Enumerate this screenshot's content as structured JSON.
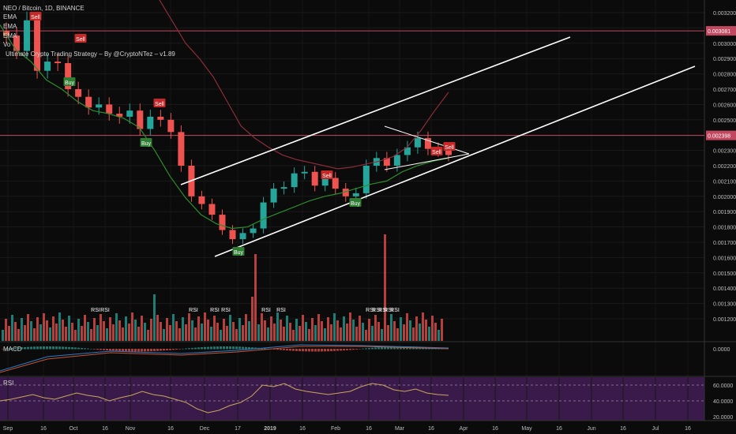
{
  "header": {
    "symbol": "NEO / Bitcoin, 1D, BINANCE",
    "ema_labels": [
      "EMA",
      "EMA",
      "EMA"
    ],
    "vol_label": "Vo",
    "strategy": "Ultimate Crypto Trading Strategy – By @CryptoNTez – v1.89"
  },
  "panes": {
    "macd_label": "MACD",
    "rsi_label": "RSI"
  },
  "colors": {
    "background": "#0b0b0b",
    "candle_up": "#26a69a",
    "candle_down": "#ef5350",
    "ema_green": "#2e8b2e",
    "ema_red": "#8b2d3a",
    "hline": "#c2485f",
    "channel": "#ffffff",
    "rsi_band": "#3a1a4a",
    "rsi_line": "#c9a75a",
    "buy": "#2e7d32",
    "sell": "#c62828"
  },
  "chart_data": {
    "type": "candlestick",
    "title": "NEO / Bitcoin, 1D, BINANCE",
    "x_ticks": [
      "Sep",
      "16",
      "Oct",
      "16",
      "Nov",
      "16",
      "Dec",
      "17",
      "2019",
      "16",
      "Feb",
      "16",
      "Mar",
      "16",
      "Apr",
      "16",
      "May",
      "16",
      "Jun",
      "16",
      "Jul",
      "16"
    ],
    "y_ticks": [
      "0.003200",
      "0.003100",
      "0.003000",
      "0.002900",
      "0.002800",
      "0.002700",
      "0.002600",
      "0.002500",
      "0.002400",
      "0.002300",
      "0.002200",
      "0.002100",
      "0.002000",
      "0.001900",
      "0.001800",
      "0.001700",
      "0.001600",
      "0.001500",
      "0.001400",
      "0.001300",
      "0.001200"
    ],
    "ylim": [
      0.00115,
      0.00325
    ],
    "price_close": [
      0.00305,
      0.00295,
      0.00315,
      0.00282,
      0.00288,
      0.00287,
      0.0027,
      0.00265,
      0.00258,
      0.0026,
      0.00254,
      0.00252,
      0.00256,
      0.00244,
      0.00252,
      0.0025,
      0.00242,
      0.0022,
      0.002,
      0.00195,
      0.00188,
      0.00178,
      0.00172,
      0.00176,
      0.00179,
      0.00196,
      0.00205,
      0.00206,
      0.00215,
      0.00216,
      0.00207,
      0.00212,
      0.00205,
      0.002,
      0.00202,
      0.0022,
      0.00225,
      0.0022,
      0.00227,
      0.00232,
      0.00238,
      0.00231,
      0.0023,
      0.00227
    ],
    "ema_fast": [
      0.00312,
      0.00296,
      0.00288,
      0.00276,
      0.0027,
      0.00262,
      0.00256,
      0.00254,
      0.00251,
      0.00245,
      0.0023,
      0.00213,
      0.00199,
      0.00188,
      0.00182,
      0.00179,
      0.0018,
      0.00185,
      0.00189,
      0.00193,
      0.00197,
      0.002,
      0.00202,
      0.00205,
      0.00208,
      0.0021,
      0.00216,
      0.0022,
      0.00223,
      0.00225
    ],
    "ema_slow": [
      0.0033,
      0.00315,
      0.003,
      0.0029,
      0.00278,
      0.00262,
      0.00246,
      0.00238,
      0.00232,
      0.00227,
      0.00224,
      0.00222,
      0.0022,
      0.00218,
      0.00219,
      0.00221,
      0.00223,
      0.00226,
      0.00232,
      0.00243,
      0.00256,
      0.00268
    ],
    "hlines": [
      {
        "value": 0.003081,
        "label": "0.003081"
      },
      {
        "value": 0.002398,
        "label": "0.002398"
      }
    ],
    "signals": [
      {
        "type": "Sell",
        "price": 0.00304
      },
      {
        "type": "Buy",
        "price": 0.00273
      },
      {
        "type": "Sell",
        "price": 0.00282
      },
      {
        "type": "Buy",
        "price": 0.00232
      },
      {
        "type": "Sell",
        "price": 0.00262
      },
      {
        "type": "Buy",
        "price": 0.0017
      },
      {
        "type": "Buy",
        "price": 0.00198
      },
      {
        "type": "Sell",
        "price": 0.00237
      },
      {
        "type": "Sell",
        "price": 0.00237
      },
      {
        "type": "Sell",
        "price": 0.00239
      }
    ],
    "rsi_markers": [
      "RSI",
      "RSI",
      "RSI",
      "RSI",
      "RSI",
      "RSI",
      "RSI",
      "RSI",
      "RSI",
      "RSI",
      "RSI",
      "RSI"
    ],
    "macd_ticks": [
      "0.0000"
    ],
    "rsi_ticks": [
      "60.0000",
      "40.0000",
      "20.0000"
    ],
    "rsi_values": [
      40,
      42,
      45,
      48,
      44,
      42,
      46,
      50,
      47,
      45,
      40,
      44,
      47,
      52,
      48,
      46,
      42,
      38,
      30,
      25,
      28,
      34,
      38,
      46,
      60,
      58,
      62,
      55,
      52,
      50,
      48,
      50,
      52,
      58,
      62,
      60,
      54,
      52,
      55,
      50,
      48,
      47
    ]
  }
}
